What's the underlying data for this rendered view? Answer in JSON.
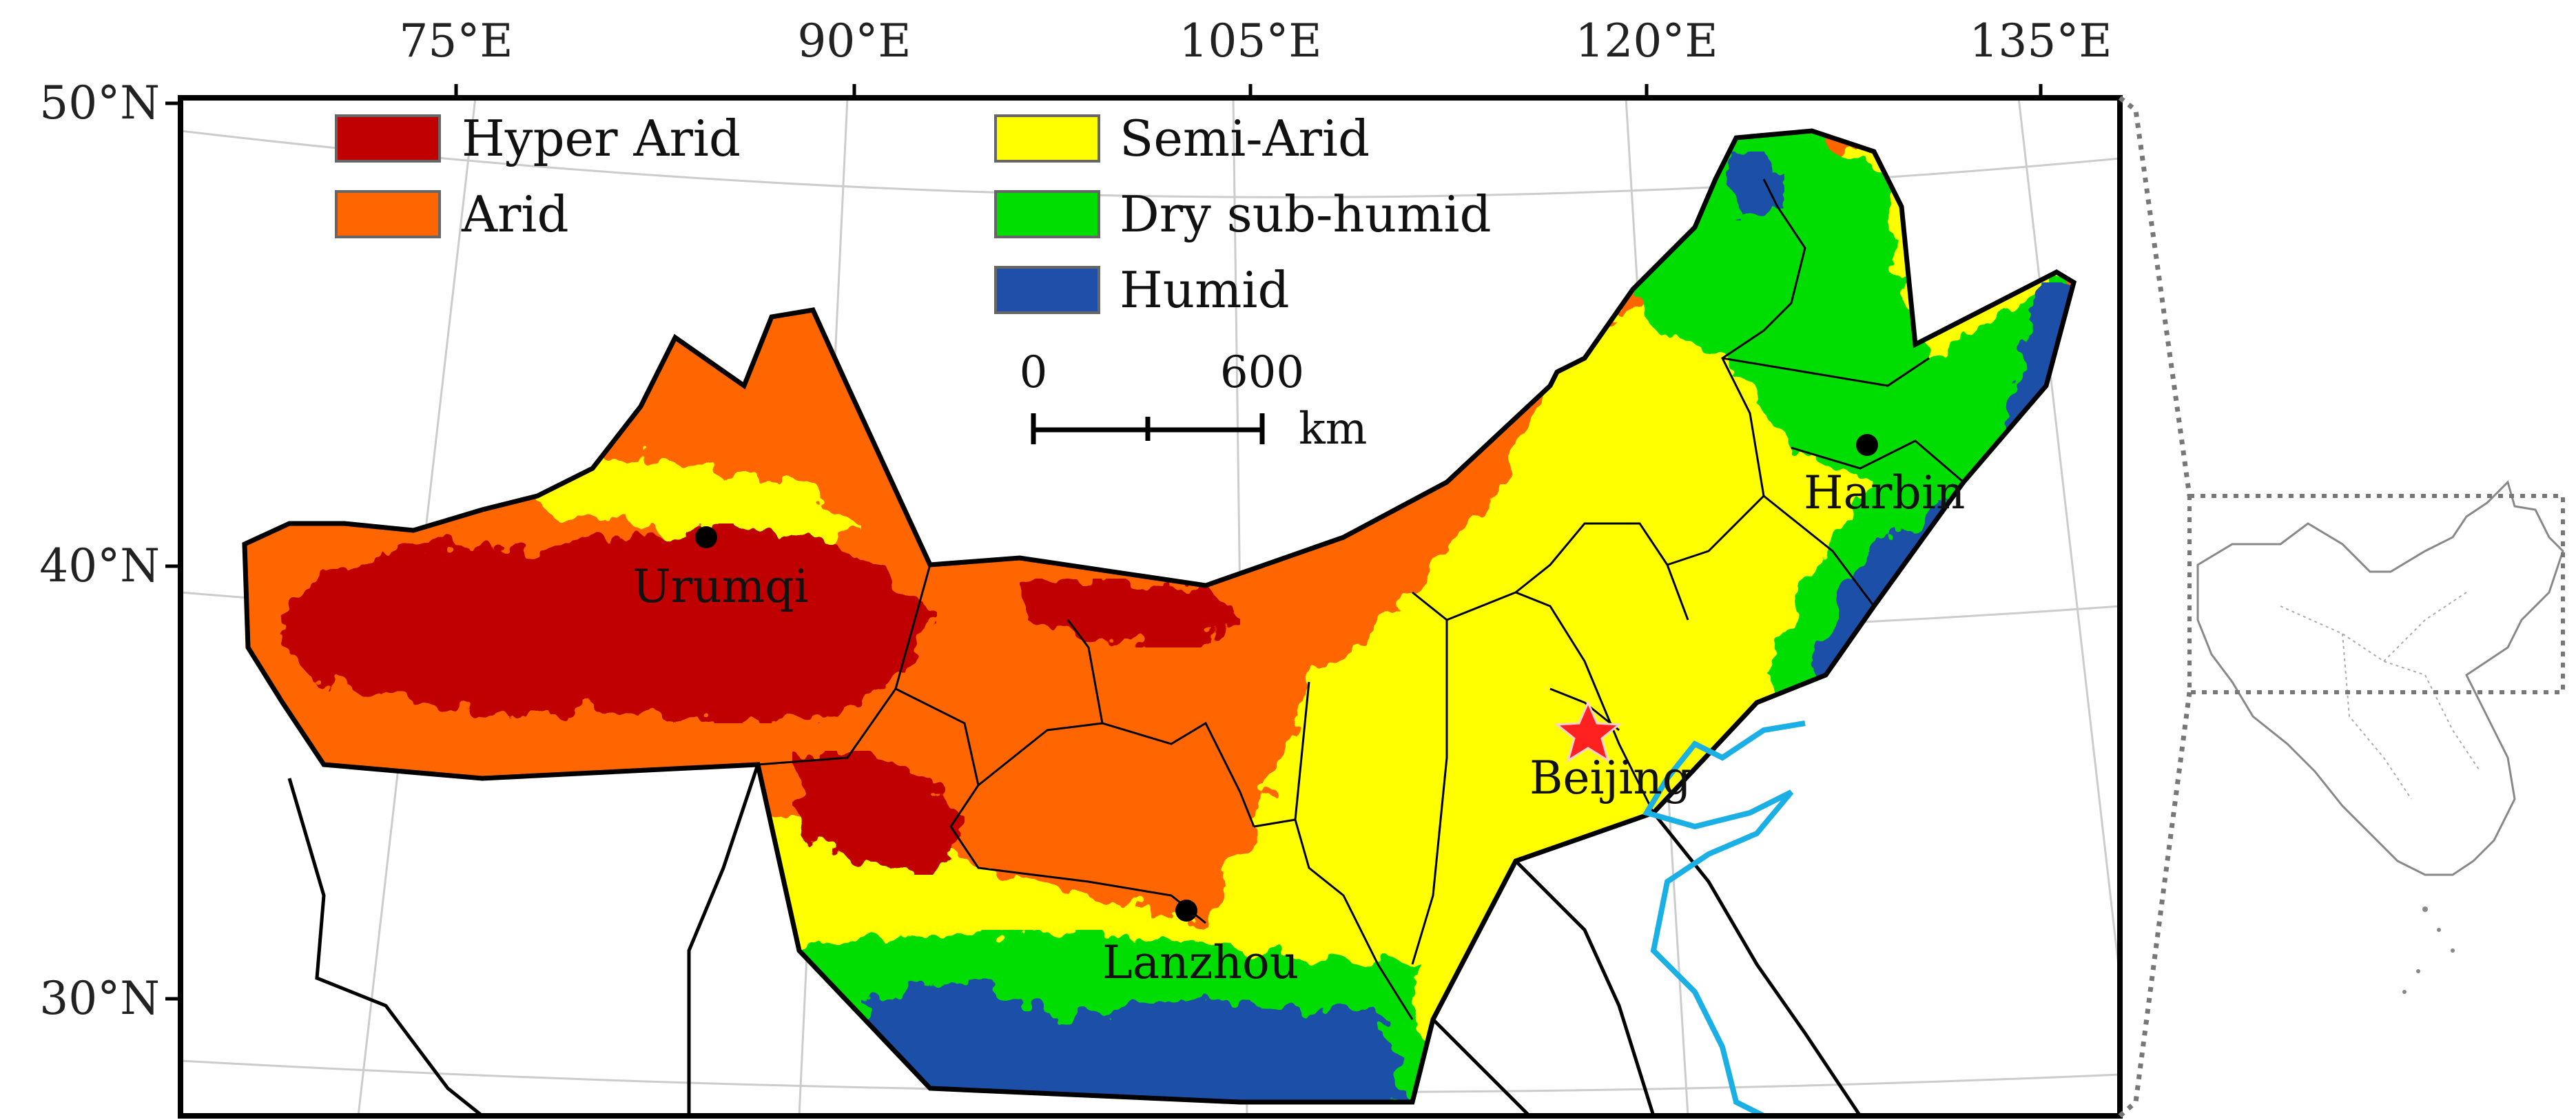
{
  "map": {
    "longitude_labels": [
      "75°E",
      "90°E",
      "105°E",
      "120°E",
      "135°E"
    ],
    "latitude_labels": [
      "50°N",
      "40°N",
      "30°N"
    ]
  },
  "legend": {
    "items": [
      {
        "label": "Hyper Arid",
        "color": "#c00000"
      },
      {
        "label": "Arid",
        "color": "#ff6600"
      },
      {
        "label": "Semi-Arid",
        "color": "#ffff00"
      },
      {
        "label": "Dry sub-humid",
        "color": "#00dd00"
      },
      {
        "label": "Humid",
        "color": "#1f4fa8"
      }
    ]
  },
  "scale_bar": {
    "start_label": "0",
    "end_label": "600",
    "unit": "km"
  },
  "cities": [
    {
      "name": "Urumqi",
      "marker": "dot"
    },
    {
      "name": "Harbin",
      "marker": "dot"
    },
    {
      "name": "Beijing",
      "marker": "star",
      "marker_color": "#ff2020"
    },
    {
      "name": "Lanzhou",
      "marker": "dot"
    }
  ],
  "colors": {
    "coastline": "#1ab0e6",
    "border": "#000000",
    "graticule": "#cccccc"
  },
  "inset": {
    "icon": "china-locator-map-icon"
  }
}
